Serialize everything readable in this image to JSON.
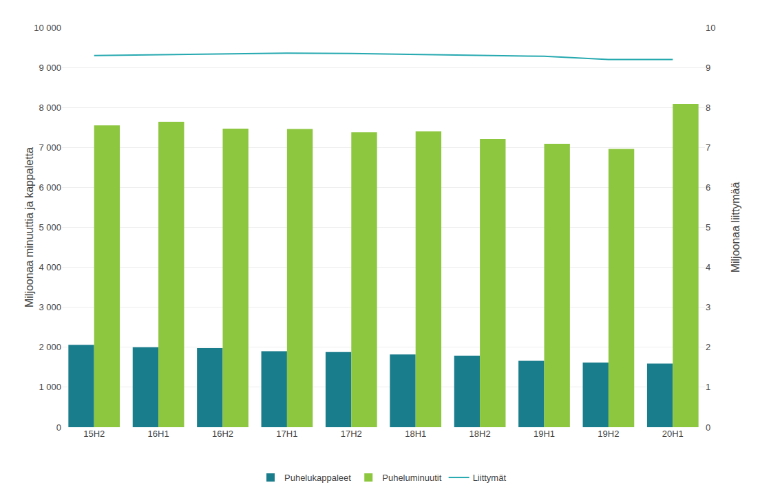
{
  "chart_data": {
    "type": "bar",
    "categories": [
      "15H2",
      "16H1",
      "16H2",
      "17H1",
      "17H2",
      "18H1",
      "18H2",
      "19H1",
      "19H2",
      "20H1"
    ],
    "series": [
      {
        "name": "Puhelukappaleet",
        "type": "bar",
        "color": "#1a7d8c",
        "values": [
          2060,
          2000,
          1980,
          1900,
          1880,
          1820,
          1790,
          1660,
          1620,
          1590
        ]
      },
      {
        "name": "Puheluminuutit",
        "type": "bar",
        "color": "#8dc63f",
        "values": [
          7550,
          7640,
          7470,
          7460,
          7380,
          7400,
          7210,
          7090,
          6960,
          8090
        ]
      },
      {
        "name": "Liittymät",
        "type": "line",
        "axis": "y2",
        "color": "#26a9b0",
        "values": [
          9.3,
          9.32,
          9.34,
          9.36,
          9.35,
          9.33,
          9.31,
          9.28,
          9.2,
          9.2
        ]
      }
    ],
    "ylabel": "Miljoonaa minuuttia ja kappaletta",
    "y2label": "Miljoonaa liittymää",
    "ylim": [
      0,
      10000
    ],
    "yticks": [
      0,
      {
        "value": 1000,
        "label": "1 000"
      },
      {
        "value": 2000,
        "label": "2 000"
      },
      {
        "value": 3000,
        "label": "3 000"
      },
      {
        "value": 4000,
        "label": "4 000"
      },
      {
        "value": 5000,
        "label": "5 000"
      },
      {
        "value": 6000,
        "label": "6 000"
      },
      {
        "value": 7000,
        "label": "7 000"
      },
      {
        "value": 8000,
        "label": "8 000"
      },
      {
        "value": 9000,
        "label": "9 000"
      },
      {
        "value": 10000,
        "label": "10 000"
      }
    ],
    "y2lim": [
      0,
      10
    ],
    "y2ticks": [
      0,
      1,
      2,
      3,
      4,
      5,
      6,
      7,
      8,
      9,
      10
    ],
    "grid": true,
    "legend": "bottom"
  }
}
